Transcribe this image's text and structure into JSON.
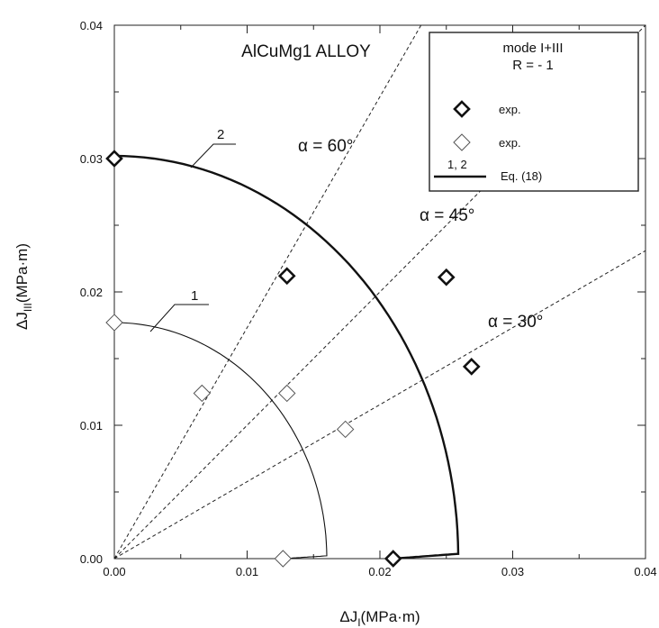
{
  "chart_data": {
    "type": "scatter",
    "title": "AlCuMg1 ALLOY",
    "xlabel_delta": "ΔJ",
    "xlabel_sub": "I",
    "xlabel_unit": "(MPa·m)",
    "ylabel_delta": "ΔJ",
    "ylabel_sub": "III",
    "ylabel_unit": "(MPa·m)",
    "xlim": [
      0,
      0.04
    ],
    "ylim": [
      0,
      0.04
    ],
    "xticks": [
      "0.00",
      "0.01",
      "0.02",
      "0.03",
      "0.04"
    ],
    "yticks": [
      "0.00",
      "0.01",
      "0.02",
      "0.03",
      "0.04"
    ],
    "grid": false,
    "legend": {
      "title_line1": "mode I+III",
      "title_line2": "R = - 1",
      "entries": [
        {
          "marker": "diamond-bold",
          "label": "exp."
        },
        {
          "marker": "diamond-thin",
          "label": "exp."
        },
        {
          "marker": "line",
          "line_label": "1, 2",
          "label": "Eq. (18)"
        }
      ],
      "placement": "top-right"
    },
    "series": [
      {
        "marker": "diamond-bold",
        "points": [
          [
            0.0,
            0.03
          ],
          [
            0.013,
            0.0212
          ],
          [
            0.025,
            0.0211
          ],
          [
            0.0269,
            0.0144
          ],
          [
            0.021,
            0.0
          ]
        ]
      },
      {
        "marker": "diamond-thin",
        "points": [
          [
            0.0,
            0.0177
          ],
          [
            0.0066,
            0.0124
          ],
          [
            0.013,
            0.0124
          ],
          [
            0.0174,
            0.0097
          ],
          [
            0.0127,
            0.0
          ]
        ]
      }
    ],
    "curves": [
      {
        "label": "1",
        "jI_max": 0.016,
        "jIII_max": 0.0177,
        "jI_end": 0.0127
      },
      {
        "label": "2",
        "jI_max": 0.0259,
        "jIII_max": 0.0302,
        "jI_end": 0.021
      }
    ],
    "alpha_lines": [
      {
        "label": "α = 60°",
        "angle_deg": 60
      },
      {
        "label": "α = 45°",
        "angle_deg": 45
      },
      {
        "label": "α = 30°",
        "angle_deg": 30
      }
    ]
  }
}
